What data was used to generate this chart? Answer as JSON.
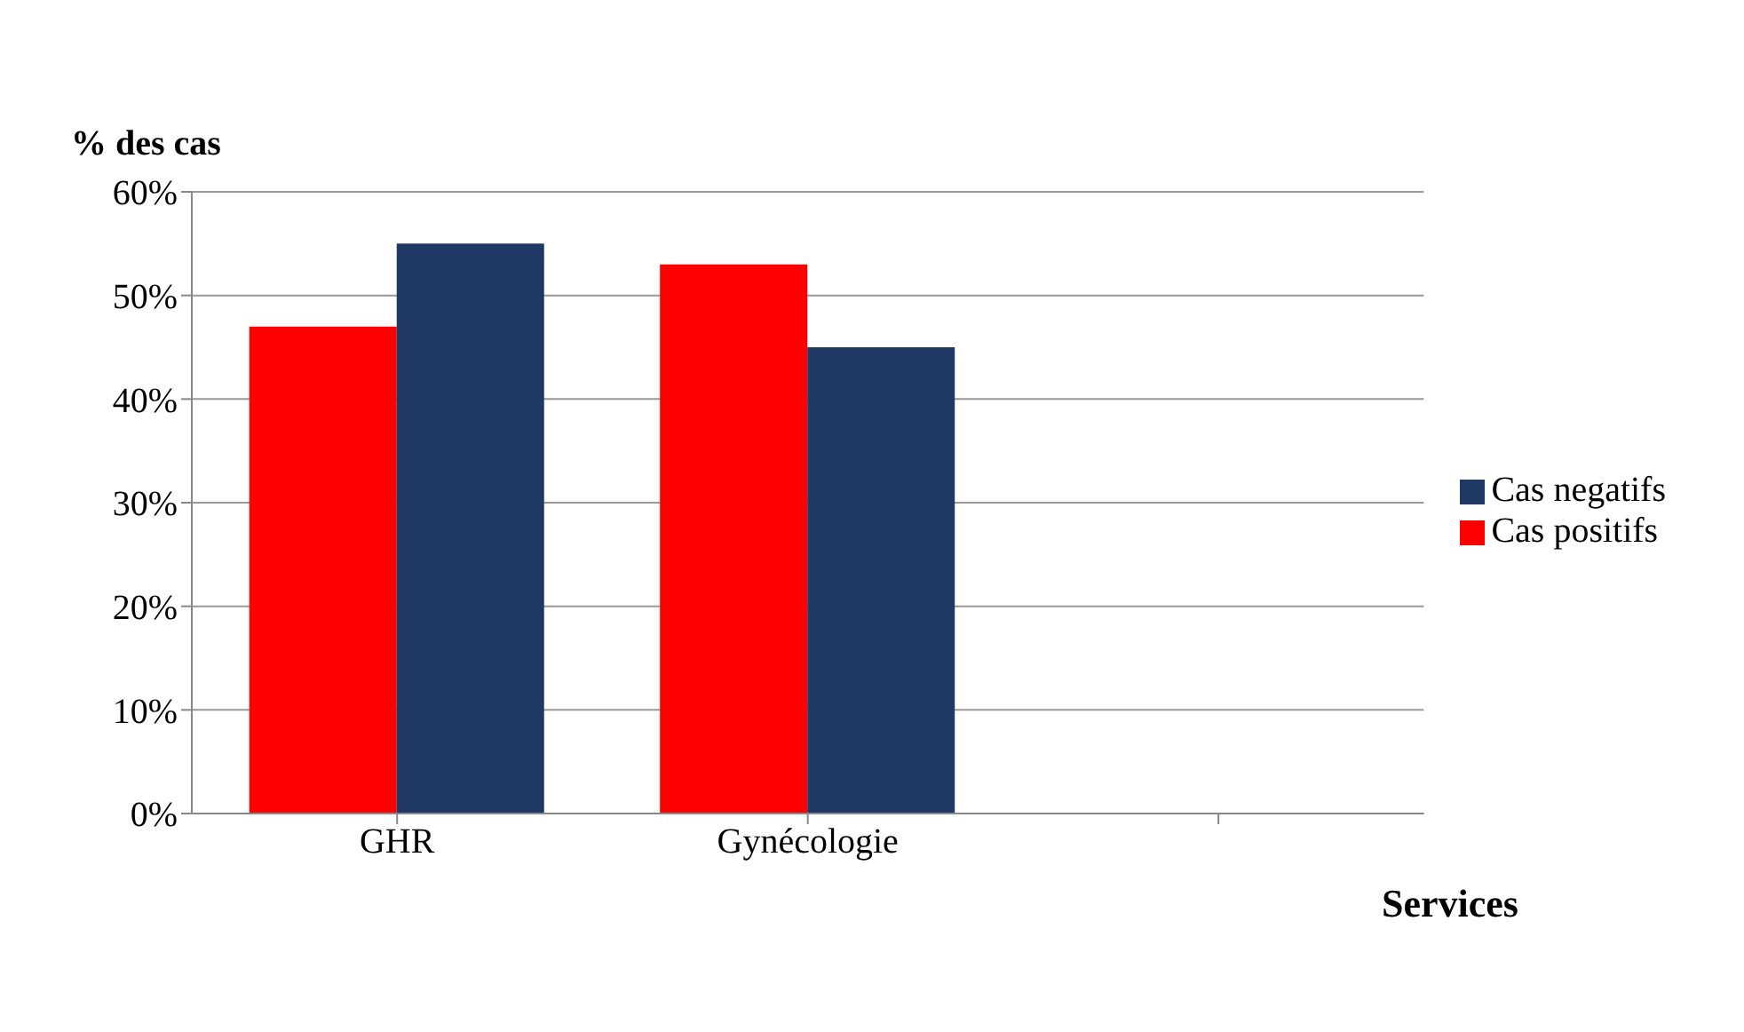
{
  "chart_data": {
    "type": "bar",
    "ylabel": "% des cas",
    "xlabel": "Services",
    "categories": [
      "GHR",
      "Gynécologie",
      null
    ],
    "series": [
      {
        "name": "Cas positifs",
        "color": "#ff0000",
        "values": [
          47,
          53,
          null
        ]
      },
      {
        "name": "Cas negatifs",
        "color": "#1f3864",
        "values": [
          55,
          45,
          null
        ]
      }
    ],
    "ylim": [
      0,
      60
    ],
    "yticks": [
      {
        "value": 0,
        "label": "0%"
      },
      {
        "value": 10,
        "label": "10%"
      },
      {
        "value": 20,
        "label": "20%"
      },
      {
        "value": 30,
        "label": "30%"
      },
      {
        "value": 40,
        "label": "40%"
      },
      {
        "value": 50,
        "label": "50%"
      },
      {
        "value": 60,
        "label": "60%"
      }
    ],
    "grid": "y",
    "legend": "right"
  }
}
